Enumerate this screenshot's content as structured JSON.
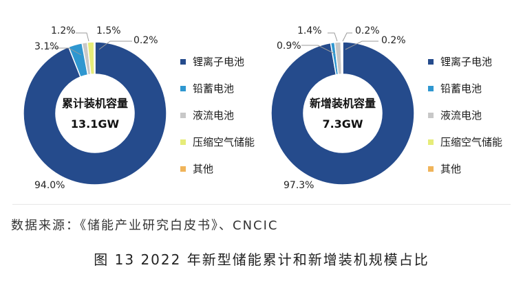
{
  "chart_data": [
    {
      "type": "pie",
      "center_title": "累计装机容量",
      "center_value": "13.1GW",
      "categories": [
        "锂离子电池",
        "铅蓄电池",
        "液流电池",
        "压缩空气储能",
        "其他"
      ],
      "values": [
        94.0,
        3.1,
        1.2,
        1.5,
        0.2
      ],
      "value_labels": [
        "94.0%",
        "3.1%",
        "1.2%",
        "1.5%",
        "0.2%"
      ],
      "colors": [
        "#254b8c",
        "#2f97d0",
        "#c8c8c8",
        "#e6ec79",
        "#f0b45a"
      ],
      "legend_position": "right"
    },
    {
      "type": "pie",
      "center_title": "新增装机容量",
      "center_value": "7.3GW",
      "categories": [
        "锂离子电池",
        "铅蓄电池",
        "液流电池",
        "压缩空气储能",
        "其他"
      ],
      "values": [
        97.3,
        0.9,
        1.4,
        0.2,
        0.2
      ],
      "value_labels": [
        "97.3%",
        "0.9%",
        "1.4%",
        "0.2%",
        "0.2%"
      ],
      "colors": [
        "#254b8c",
        "#2f97d0",
        "#c8c8c8",
        "#e6ec79",
        "#f0b45a"
      ],
      "legend_position": "right"
    }
  ],
  "source": "数据来源：《储能产业研究白皮书》、CNCIC",
  "caption": "图 13  2022 年新型储能累计和新增装机规模占比"
}
